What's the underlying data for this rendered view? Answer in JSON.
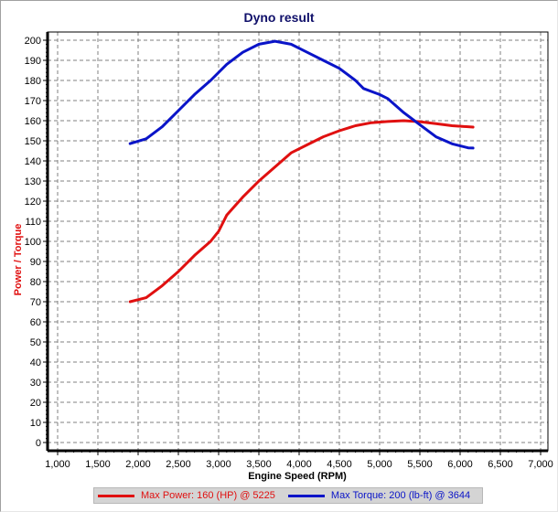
{
  "title": "Dyno result",
  "y_axis_label": "Power / Torque",
  "x_axis_label": "Engine Speed (RPM)",
  "legend": [
    {
      "label": "Max Power: 160 (HP) @ 5225",
      "color": "#e01010"
    },
    {
      "label": "Max Torque: 200 (lb-ft) @ 3644",
      "color": "#0a14c8"
    }
  ],
  "chart_data": {
    "type": "line",
    "title": "Dyno result",
    "xlabel": "Engine Speed (RPM)",
    "ylabel": "Power / Torque",
    "xlim": [
      1000,
      7000
    ],
    "ylim": [
      0,
      200
    ],
    "x_ticks": [
      "1,000",
      "1,500",
      "2,000",
      "2,500",
      "3,000",
      "3,500",
      "4,000",
      "4,500",
      "5,000",
      "5,500",
      "6,000",
      "6,500",
      "7,000"
    ],
    "y_ticks": [
      "0",
      "10",
      "20",
      "30",
      "40",
      "50",
      "60",
      "70",
      "80",
      "90",
      "100",
      "110",
      "120",
      "130",
      "140",
      "150",
      "160",
      "170",
      "180",
      "190",
      "200"
    ],
    "grid": true,
    "legend_position": "bottom",
    "series": [
      {
        "name": "Max Power: 160 (HP) @ 5225",
        "color": "#e01010",
        "x": [
          1900,
          2100,
          2300,
          2500,
          2700,
          2900,
          3000,
          3100,
          3300,
          3500,
          3700,
          3900,
          4100,
          4300,
          4500,
          4700,
          4900,
          5100,
          5300,
          5500,
          5700,
          5900,
          6160
        ],
        "values": [
          70,
          72,
          78,
          85,
          93,
          100,
          105,
          113,
          122,
          130,
          137,
          144,
          148,
          152,
          155,
          157.5,
          159,
          159.6,
          160,
          159.5,
          158.5,
          157.5,
          156.8
        ]
      },
      {
        "name": "Max Torque: 200 (lb-ft) @ 3644",
        "color": "#0a14c8",
        "x": [
          1900,
          2100,
          2300,
          2500,
          2700,
          2900,
          3100,
          3300,
          3500,
          3700,
          3900,
          4100,
          4300,
          4500,
          4700,
          4800,
          5000,
          5100,
          5300,
          5500,
          5700,
          5900,
          6100,
          6160
        ],
        "values": [
          148.6,
          151,
          157,
          165,
          173,
          180,
          188,
          194,
          198,
          199.5,
          198,
          194,
          190,
          186,
          180,
          176,
          173,
          171,
          164,
          158,
          152,
          148.5,
          146.5,
          146.4
        ]
      }
    ],
    "annotations": [
      "Max Power: 160 (HP) @ 5225",
      "Max Torque: 200 (lb-ft) @ 3644"
    ]
  }
}
